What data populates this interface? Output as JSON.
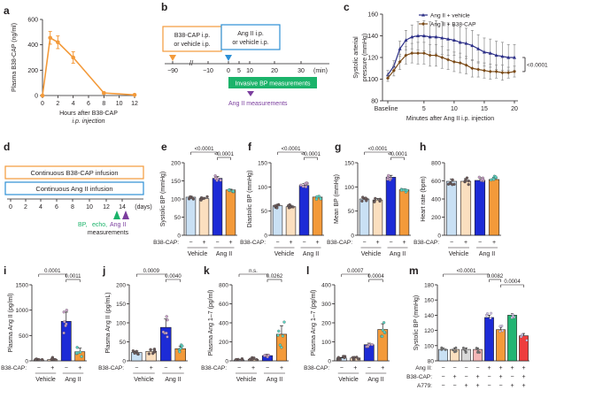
{
  "figure": {
    "colors": {
      "orange": "#f39a3a",
      "blue_box": "#2d8fd5",
      "green": "#1bb36a",
      "purple": "#7b3e9e",
      "navy": "#2c2f87",
      "brown": "#7a4a17",
      "ctrl_blue": "#c9e0f4",
      "ctrl_peach": "#fbdfbf",
      "angii_blue": "#1d2bd6",
      "angii_orange": "#f39a3a",
      "m_green": "#22b573",
      "m_lime": "#8dc63f",
      "m_red": "#ee3d3d"
    },
    "panel_letters": [
      "a",
      "b",
      "c",
      "d",
      "e",
      "f",
      "g",
      "h",
      "i",
      "j",
      "k",
      "l",
      "m"
    ],
    "panel_b": {
      "box1_line1": "B38-CAP i.p.",
      "box1_line2": "or vehicle i.p.",
      "box2_line1": "Ang II i.p.",
      "box2_line2": "or vehicle i.p.",
      "axis_ticks": [
        "−90",
        "−10",
        "0",
        "5",
        "10",
        "20",
        "30"
      ],
      "axis_unit": "(min)",
      "green_box": "Invasive BP measurements",
      "angii_measure": "Ang II measurements"
    },
    "panel_d": {
      "box1": "Continuous B38-CAP infusion",
      "box2": "Continuous Ang II infusion",
      "axis_ticks": [
        "0",
        "2",
        "4",
        "6",
        "8",
        "10",
        "12",
        "14"
      ],
      "axis_unit": "(days)",
      "measure_bp": "BP,",
      "measure_echo": "echo,",
      "measure_ang": "Ang II",
      "measure_word": "measurements"
    },
    "group_labels": {
      "row_label": "B38-CAP:",
      "minus": "−",
      "plus": "+",
      "vehicle": "Vehicle",
      "angii": "Ang II"
    },
    "panel_m_rows": {
      "angii": "Ang II:",
      "b38": "B38-CAP:",
      "a779": "A779:",
      "angii_signs": [
        "−",
        "−",
        "−",
        "−",
        "+",
        "+",
        "+",
        "+"
      ],
      "b38_signs": [
        "−",
        "+",
        "−",
        "+",
        "−",
        "+",
        "−",
        "+"
      ],
      "a779_signs": [
        "−",
        "−",
        "+",
        "+",
        "−",
        "−",
        "+",
        "+"
      ]
    }
  },
  "chart_data": [
    {
      "id": "a",
      "type": "line",
      "title": "",
      "xlabel_line1": "Hours after B38-CAP",
      "xlabel_line2": "i.p. injection",
      "ylabel": "Plasma B38-CAP (ng/ml)",
      "xlim": [
        0,
        12
      ],
      "ylim": [
        0,
        600
      ],
      "xticks": [
        0,
        2,
        4,
        6,
        8,
        10,
        12
      ],
      "yticks": [
        0,
        200,
        400,
        600
      ],
      "x": [
        0,
        1,
        2,
        4,
        8,
        12
      ],
      "values": [
        0,
        455,
        420,
        300,
        20,
        5
      ],
      "errors": [
        0,
        50,
        50,
        45,
        8,
        3
      ]
    },
    {
      "id": "c",
      "type": "line",
      "ylabel_line1": "Systolic arterial",
      "ylabel_line2": "pressure (mmHg)",
      "xlabel": "Minutes after Ang II i.p. injection",
      "ylim": [
        80,
        160
      ],
      "yticks": [
        80,
        100,
        120,
        140,
        160
      ],
      "xtick_labels": [
        "Baseline",
        "5",
        "10",
        "15",
        "20"
      ],
      "pvalue": "<0.0001",
      "x": [
        -1,
        0,
        1,
        2,
        3,
        4,
        5,
        6,
        7,
        8,
        9,
        10,
        11,
        12,
        13,
        14,
        15,
        16,
        17,
        18,
        19,
        20
      ],
      "series": [
        {
          "name": "Ang II + vehicle",
          "values": [
            104,
            112,
            128,
            136,
            139,
            140,
            140,
            139,
            139,
            138,
            137,
            136,
            134,
            133,
            131,
            128,
            125,
            124,
            122,
            121,
            120,
            120
          ],
          "errors": [
            4,
            5,
            7,
            9,
            11,
            13,
            14,
            14,
            15,
            15,
            15,
            14,
            14,
            14,
            14,
            13,
            13,
            13,
            13,
            13,
            12,
            12
          ]
        },
        {
          "name": "Ang II + B38-CAP",
          "values": [
            101,
            108,
            116,
            122,
            124,
            124,
            124,
            122,
            122,
            120,
            118,
            116,
            115,
            113,
            110,
            109,
            108,
            107,
            107,
            106,
            106,
            107
          ],
          "errors": [
            3,
            5,
            7,
            8,
            9,
            10,
            10,
            10,
            10,
            10,
            9,
            9,
            9,
            8,
            8,
            7,
            7,
            7,
            6,
            7,
            5,
            5
          ]
        }
      ]
    },
    {
      "id": "e",
      "type": "bar",
      "ylabel": "Systolic BP (mmHg)",
      "ylim": [
        0,
        200
      ],
      "yticks": [
        0,
        50,
        100,
        150,
        200
      ],
      "values": [
        105,
        101,
        157,
        125
      ],
      "errors": [
        3,
        3,
        5,
        2
      ],
      "brackets": [
        {
          "from": 0,
          "to": 2,
          "label": "<0.0001"
        },
        {
          "from": 2,
          "to": 3,
          "label": "<0.0001"
        }
      ]
    },
    {
      "id": "f",
      "type": "bar",
      "ylabel": "Diastolic BP (mmHg)",
      "ylim": [
        0,
        150
      ],
      "yticks": [
        0,
        50,
        100,
        150
      ],
      "values": [
        61,
        59,
        103,
        79
      ],
      "errors": [
        3,
        3,
        4,
        2
      ],
      "brackets": [
        {
          "from": 0,
          "to": 2,
          "label": "<0.0001"
        },
        {
          "from": 2,
          "to": 3,
          "label": "<0.0001"
        }
      ]
    },
    {
      "id": "g",
      "type": "bar",
      "ylabel": "Mean BP (mmHg)",
      "ylim": [
        0,
        150
      ],
      "yticks": [
        0,
        50,
        100,
        150
      ],
      "values": [
        75,
        73,
        120,
        94
      ],
      "errors": [
        3,
        3,
        4,
        2
      ],
      "brackets": [
        {
          "from": 0,
          "to": 2,
          "label": "<0.0001"
        },
        {
          "from": 2,
          "to": 3,
          "label": "<0.0001"
        }
      ]
    },
    {
      "id": "h",
      "type": "bar",
      "ylabel": "Heart rate (bpm)",
      "ylim": [
        0,
        800
      ],
      "yticks": [
        0,
        200,
        400,
        600,
        800
      ],
      "values": [
        595,
        595,
        605,
        615
      ],
      "errors": [
        25,
        30,
        30,
        25
      ],
      "brackets": []
    },
    {
      "id": "i",
      "type": "bar",
      "ylabel": "Plasma Ang II (pg/ml)",
      "ylim": [
        0,
        1500
      ],
      "yticks": [
        0,
        500,
        1000,
        1500
      ],
      "values": [
        20,
        25,
        780,
        180
      ],
      "errors": [
        5,
        8,
        180,
        70
      ],
      "brackets": [
        {
          "from": 0,
          "to": 2,
          "label": "0.0001"
        },
        {
          "from": 2,
          "to": 3,
          "label": "0.0011"
        }
      ]
    },
    {
      "id": "j",
      "type": "bar",
      "ylabel": "Plasma Ang II (pg/mL)",
      "ylim": [
        0,
        200
      ],
      "yticks": [
        0,
        50,
        100,
        150,
        200
      ],
      "values": [
        22,
        25,
        88,
        32
      ],
      "errors": [
        4,
        5,
        22,
        7
      ],
      "brackets": [
        {
          "from": 0,
          "to": 2,
          "label": "0.0009"
        },
        {
          "from": 2,
          "to": 3,
          "label": "0.0040"
        }
      ]
    },
    {
      "id": "k",
      "type": "bar",
      "ylabel": "Plasma Ang 1–7 (pg/ml)",
      "ylim": [
        0,
        800
      ],
      "yticks": [
        0,
        200,
        400,
        600,
        800
      ],
      "values": [
        10,
        15,
        55,
        280
      ],
      "errors": [
        3,
        5,
        15,
        90
      ],
      "brackets": [
        {
          "from": 0,
          "to": 2,
          "label": "n.s."
        },
        {
          "from": 2,
          "to": 3,
          "label": "0.0262"
        }
      ]
    },
    {
      "id": "l",
      "type": "bar",
      "ylabel": "Plasma Ang 1–7 (pg/ml)",
      "ylim": [
        0,
        400
      ],
      "yticks": [
        0,
        100,
        200,
        300,
        400
      ],
      "values": [
        15,
        15,
        85,
        165
      ],
      "errors": [
        3,
        3,
        8,
        30
      ],
      "brackets": [
        {
          "from": 0,
          "to": 2,
          "label": "0.0007"
        },
        {
          "from": 2,
          "to": 3,
          "label": "0.0004"
        }
      ]
    },
    {
      "id": "m",
      "type": "bar",
      "ylabel": "Systolic BP (mmHg)",
      "ylim": [
        80,
        180
      ],
      "yticks": [
        80,
        100,
        120,
        140,
        160,
        180
      ],
      "values": [
        95,
        95,
        95,
        95,
        137,
        121,
        140,
        113
      ],
      "errors": [
        2,
        2,
        2,
        2,
        3,
        3,
        2,
        3
      ],
      "brackets": [
        {
          "from": 0,
          "to": 4,
          "label": "<0.0001"
        },
        {
          "from": 4,
          "to": 5,
          "label": "0.0082"
        },
        {
          "from": 5,
          "to": 7,
          "label": "0.0004"
        }
      ]
    }
  ]
}
